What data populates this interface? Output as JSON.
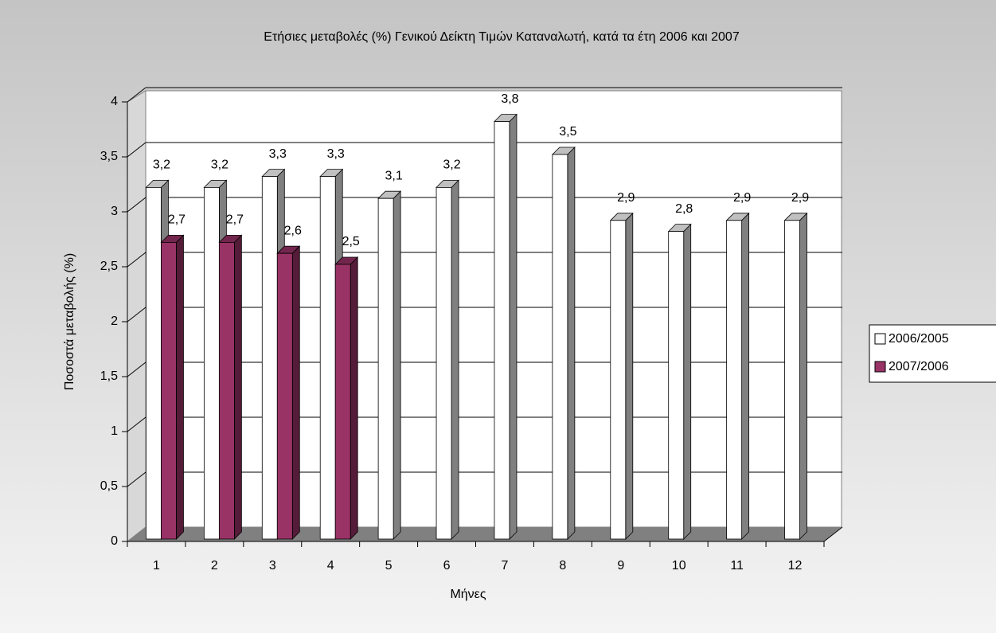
{
  "chart_data": {
    "type": "bar3d",
    "title": "Ετήσιες μεταβολές (%) Γενικού Δείκτη Τιμών Καταναλωτή, κατά τα έτη 2006 και 2007",
    "x_label": "Μήνες",
    "y_label": "Ποσοστά μεταβολής (%)",
    "categories": [
      "1",
      "2",
      "3",
      "4",
      "5",
      "6",
      "7",
      "8",
      "9",
      "10",
      "11",
      "12"
    ],
    "series": [
      {
        "name": "2006/2005",
        "color": "#ffffff",
        "values": [
          3.2,
          3.2,
          3.3,
          3.3,
          3.1,
          3.2,
          3.8,
          3.5,
          2.9,
          2.8,
          2.9,
          2.9
        ],
        "value_labels": [
          "3,2",
          "3,2",
          "3,3",
          "3,3",
          "3,1",
          "3,2",
          "3,8",
          "3,5",
          "2,9",
          "2,8",
          "2,9",
          "2,9"
        ]
      },
      {
        "name": "2007/2006",
        "color": "#993366",
        "values": [
          2.7,
          2.7,
          2.6,
          2.5,
          null,
          null,
          null,
          null,
          null,
          null,
          null,
          null
        ],
        "value_labels": [
          "2,7",
          "2,7",
          "2,6",
          "2,5",
          null,
          null,
          null,
          null,
          null,
          null,
          null,
          null
        ]
      }
    ],
    "ylim": [
      0,
      4
    ],
    "yticks": [
      0,
      {
        "value": 0.5,
        "label": "0,5"
      },
      1,
      {
        "value": 1.5,
        "label": "1,5"
      },
      2,
      {
        "value": 2.5,
        "label": "2,5"
      },
      3,
      {
        "value": 3.5,
        "label": "3,5"
      },
      4
    ],
    "grid": true,
    "legend": "right"
  }
}
